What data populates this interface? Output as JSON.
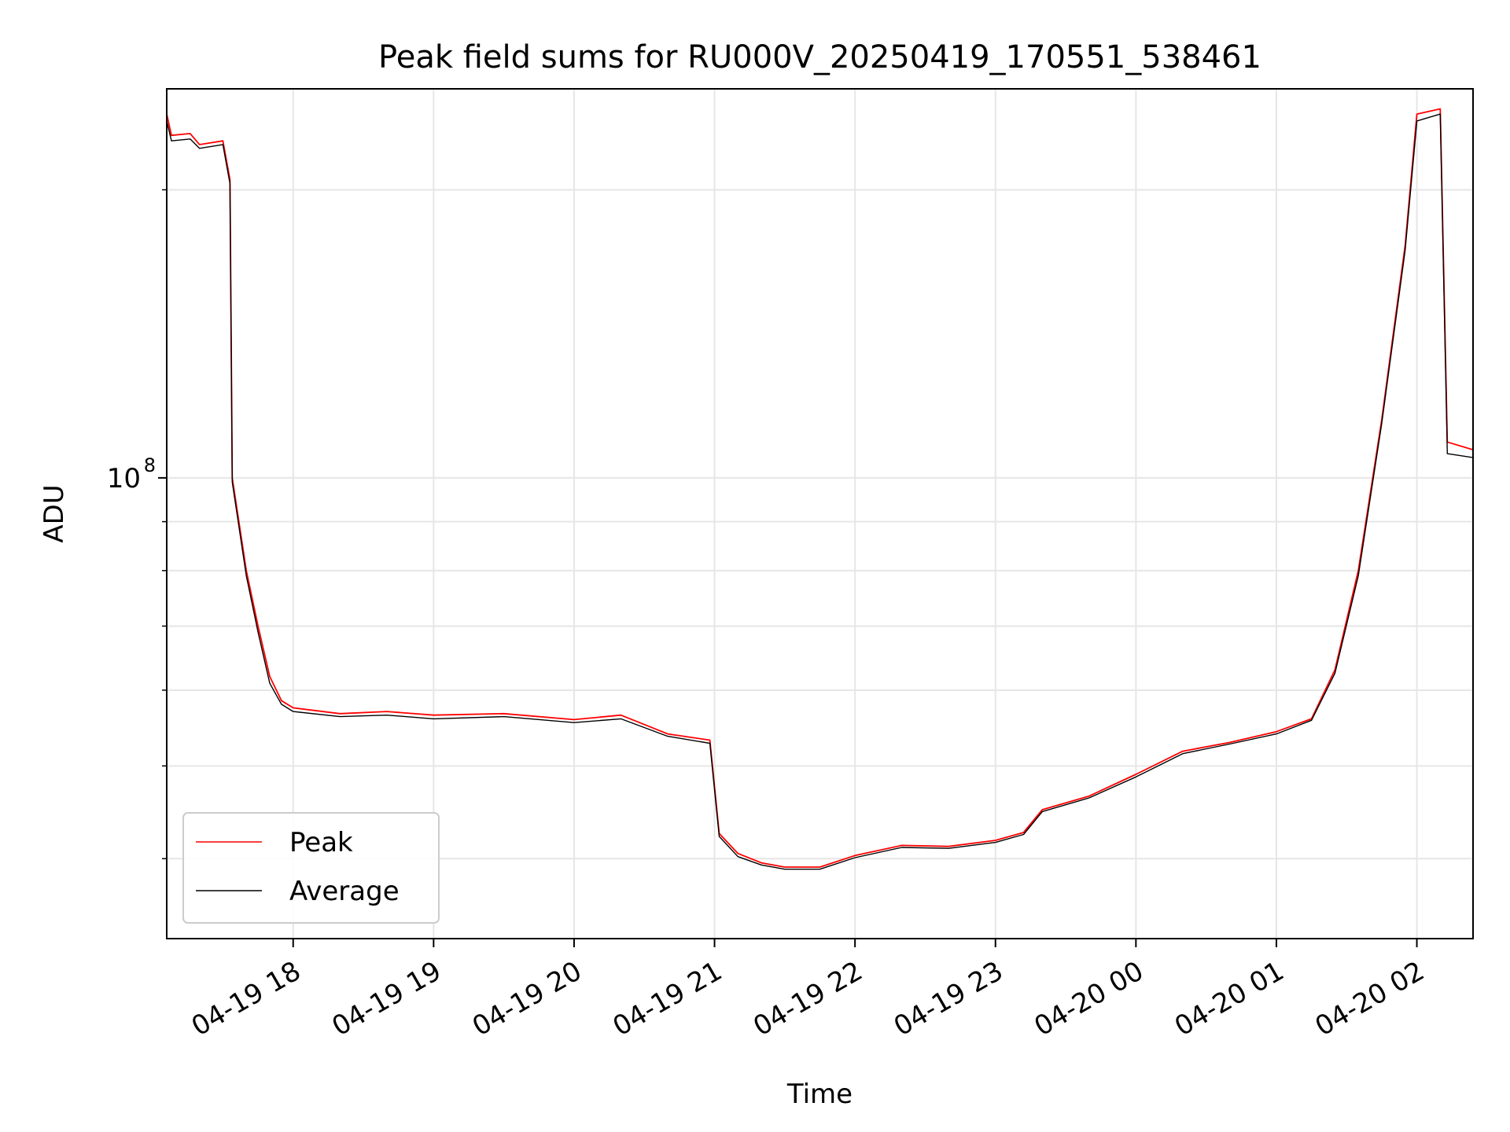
{
  "chart_data": {
    "type": "line",
    "title": "Peak field sums for RU000V_20250419_170551_538461",
    "xlabel": "Time",
    "ylabel": "ADU",
    "y_scale": "log",
    "y_tick_major_label": "10",
    "y_tick_major_exp": "8",
    "y_tick_major_value": 100000000,
    "y_minor_ticks": [
      40000000,
      50000000,
      60000000,
      70000000,
      80000000,
      90000000,
      200000000
    ],
    "ylim": [
      33000000,
      255000000
    ],
    "xlim": [
      "2025-04-19 17:06",
      "2025-04-20 02:24"
    ],
    "x_ticks": [
      {
        "value": "2025-04-19 18:00",
        "label": "04-19 18"
      },
      {
        "value": "2025-04-19 19:00",
        "label": "04-19 19"
      },
      {
        "value": "2025-04-19 20:00",
        "label": "04-19 20"
      },
      {
        "value": "2025-04-19 21:00",
        "label": "04-19 21"
      },
      {
        "value": "2025-04-19 22:00",
        "label": "04-19 22"
      },
      {
        "value": "2025-04-19 23:00",
        "label": "04-19 23"
      },
      {
        "value": "2025-04-20 00:00",
        "label": "04-20 00"
      },
      {
        "value": "2025-04-20 01:00",
        "label": "04-20 01"
      },
      {
        "value": "2025-04-20 02:00",
        "label": "04-20 02"
      }
    ],
    "grid": true,
    "legend_position": "lower-left",
    "series": [
      {
        "name": "Peak",
        "color": "#ff0000",
        "points": [
          [
            "2025-04-19 17:06",
            240000000
          ],
          [
            "2025-04-19 17:08",
            228000000
          ],
          [
            "2025-04-19 17:16",
            229000000
          ],
          [
            "2025-04-19 17:20",
            223000000
          ],
          [
            "2025-04-19 17:30",
            225000000
          ],
          [
            "2025-04-19 17:33",
            205000000
          ],
          [
            "2025-04-19 17:34",
            100000000
          ],
          [
            "2025-04-19 17:40",
            80000000
          ],
          [
            "2025-04-19 17:45",
            70000000
          ],
          [
            "2025-04-19 17:50",
            62000000
          ],
          [
            "2025-04-19 17:55",
            58500000
          ],
          [
            "2025-04-19 18:00",
            57500000
          ],
          [
            "2025-04-19 18:20",
            56700000
          ],
          [
            "2025-04-19 18:40",
            57000000
          ],
          [
            "2025-04-19 19:00",
            56500000
          ],
          [
            "2025-04-19 19:30",
            56700000
          ],
          [
            "2025-04-19 20:00",
            55900000
          ],
          [
            "2025-04-19 20:20",
            56500000
          ],
          [
            "2025-04-19 20:40",
            54000000
          ],
          [
            "2025-04-19 20:58",
            53200000
          ],
          [
            "2025-04-19 21:02",
            42500000
          ],
          [
            "2025-04-19 21:10",
            40500000
          ],
          [
            "2025-04-19 21:20",
            39600000
          ],
          [
            "2025-04-19 21:30",
            39200000
          ],
          [
            "2025-04-19 21:45",
            39200000
          ],
          [
            "2025-04-19 22:00",
            40300000
          ],
          [
            "2025-04-19 22:20",
            41300000
          ],
          [
            "2025-04-19 22:40",
            41200000
          ],
          [
            "2025-04-19 23:00",
            41800000
          ],
          [
            "2025-04-19 23:12",
            42600000
          ],
          [
            "2025-04-19 23:20",
            45000000
          ],
          [
            "2025-04-19 23:40",
            46500000
          ],
          [
            "2025-04-20 00:00",
            49000000
          ],
          [
            "2025-04-20 00:20",
            51800000
          ],
          [
            "2025-04-20 00:40",
            52900000
          ],
          [
            "2025-04-20 01:00",
            54300000
          ],
          [
            "2025-04-20 01:15",
            56000000
          ],
          [
            "2025-04-20 01:25",
            63000000
          ],
          [
            "2025-04-20 01:35",
            80000000
          ],
          [
            "2025-04-20 01:45",
            115000000
          ],
          [
            "2025-04-20 01:55",
            175000000
          ],
          [
            "2025-04-20 02:00",
            240000000
          ],
          [
            "2025-04-20 02:10",
            243000000
          ],
          [
            "2025-04-20 02:13",
            109000000
          ],
          [
            "2025-04-20 02:24",
            107000000
          ]
        ]
      },
      {
        "name": "Average",
        "color": "#000000",
        "points": [
          [
            "2025-04-19 17:06",
            236000000
          ],
          [
            "2025-04-19 17:08",
            225000000
          ],
          [
            "2025-04-19 17:16",
            226000000
          ],
          [
            "2025-04-19 17:20",
            221000000
          ],
          [
            "2025-04-19 17:30",
            223000000
          ],
          [
            "2025-04-19 17:33",
            203000000
          ],
          [
            "2025-04-19 17:34",
            99000000
          ],
          [
            "2025-04-19 17:40",
            79000000
          ],
          [
            "2025-04-19 17:45",
            69000000
          ],
          [
            "2025-04-19 17:50",
            61000000
          ],
          [
            "2025-04-19 17:55",
            58000000
          ],
          [
            "2025-04-19 18:00",
            57000000
          ],
          [
            "2025-04-19 18:20",
            56300000
          ],
          [
            "2025-04-19 18:40",
            56500000
          ],
          [
            "2025-04-19 19:00",
            56000000
          ],
          [
            "2025-04-19 19:30",
            56300000
          ],
          [
            "2025-04-19 20:00",
            55500000
          ],
          [
            "2025-04-19 20:20",
            56000000
          ],
          [
            "2025-04-19 20:40",
            53700000
          ],
          [
            "2025-04-19 20:58",
            52800000
          ],
          [
            "2025-04-19 21:02",
            42200000
          ],
          [
            "2025-04-19 21:10",
            40200000
          ],
          [
            "2025-04-19 21:20",
            39400000
          ],
          [
            "2025-04-19 21:30",
            39000000
          ],
          [
            "2025-04-19 21:45",
            39000000
          ],
          [
            "2025-04-19 22:00",
            40100000
          ],
          [
            "2025-04-19 22:20",
            41100000
          ],
          [
            "2025-04-19 22:40",
            41000000
          ],
          [
            "2025-04-19 23:00",
            41600000
          ],
          [
            "2025-04-19 23:12",
            42400000
          ],
          [
            "2025-04-19 23:20",
            44800000
          ],
          [
            "2025-04-19 23:40",
            46300000
          ],
          [
            "2025-04-20 00:00",
            48700000
          ],
          [
            "2025-04-20 00:20",
            51500000
          ],
          [
            "2025-04-20 00:40",
            52700000
          ],
          [
            "2025-04-20 01:00",
            54000000
          ],
          [
            "2025-04-20 01:15",
            55800000
          ],
          [
            "2025-04-20 01:25",
            62500000
          ],
          [
            "2025-04-20 01:35",
            79000000
          ],
          [
            "2025-04-20 01:45",
            114000000
          ],
          [
            "2025-04-20 01:55",
            173000000
          ],
          [
            "2025-04-20 02:00",
            236000000
          ],
          [
            "2025-04-20 02:10",
            240000000
          ],
          [
            "2025-04-20 02:13",
            106000000
          ],
          [
            "2025-04-20 02:24",
            105000000
          ]
        ]
      }
    ]
  }
}
